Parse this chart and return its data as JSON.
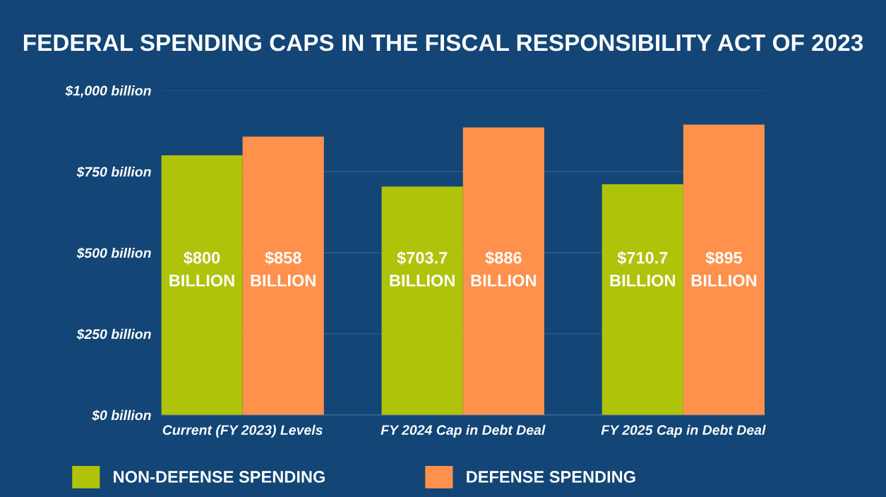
{
  "chart_data": {
    "type": "bar",
    "title": "FEDERAL SPENDING CAPS IN THE FISCAL RESPONSIBILITY ACT OF 2023",
    "categories": [
      "Current (FY 2023) Levels",
      "FY 2024 Cap in Debt Deal",
      "FY 2025 Cap in Debt Deal"
    ],
    "series": [
      {
        "name": "NON-DEFENSE SPENDING",
        "color": "#afc30b",
        "values": [
          800,
          703.7,
          710.7
        ],
        "value_labels": [
          "$800 BILLION",
          "$703.7 BILLION",
          "$710.7 BILLION"
        ]
      },
      {
        "name": "DEFENSE SPENDING",
        "color": "#ff914d",
        "values": [
          858,
          886,
          895
        ],
        "value_labels": [
          "$858 BILLION",
          "$886 BILLION",
          "$895 BILLION"
        ]
      }
    ],
    "ylim": [
      0,
      1000
    ],
    "yticks": [
      {
        "value": 0,
        "label": "$0 billion"
      },
      {
        "value": 250,
        "label": "$250 billion"
      },
      {
        "value": 500,
        "label": "$500 billion"
      },
      {
        "value": 750,
        "label": "$750 billion"
      },
      {
        "value": 1000,
        "label": "$1,000 billion"
      }
    ],
    "grid": "y",
    "legend": "bottom"
  }
}
